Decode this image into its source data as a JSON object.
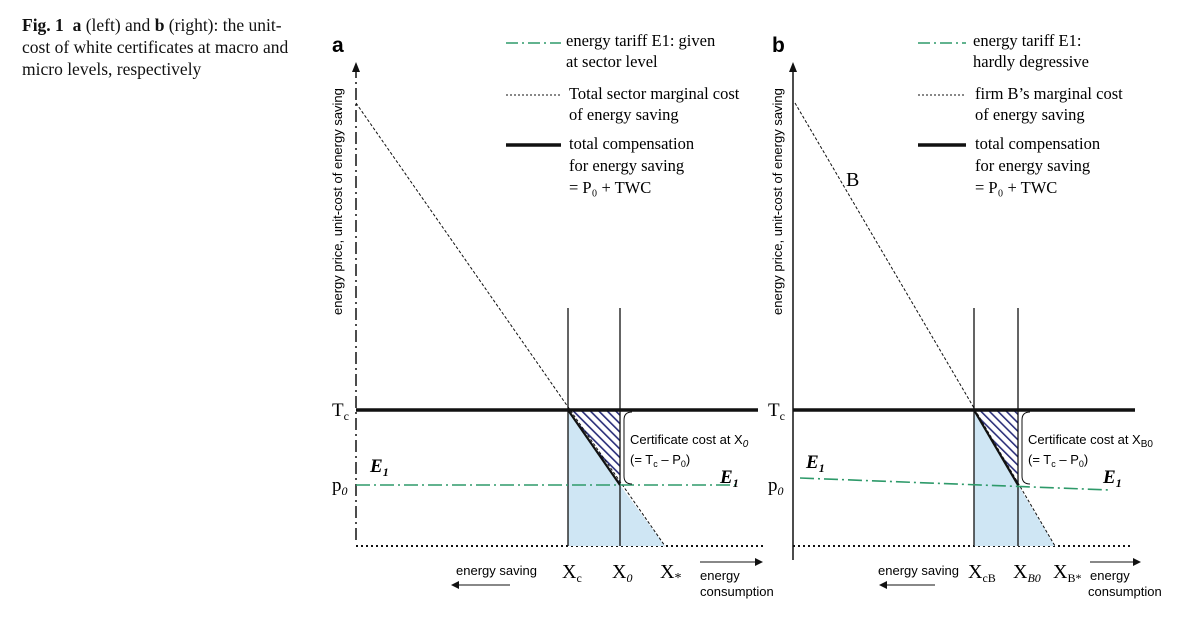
{
  "caption": {
    "fig_label": "Fig. 1",
    "a": "a",
    "a_text": "(left) and",
    "b": "b",
    "b_text": "(right): the unit-cost of white certif­icates at macro and micro levels, respectively"
  },
  "panel_a": {
    "letter": "a",
    "y_axis_label": "energy price, unit-cost of energy saving",
    "legend": [
      {
        "line": "dash-dot-green",
        "text1": "energy tariff  E1: given",
        "text2": "at sector level"
      },
      {
        "line": "dotted-black",
        "text1": "Total sector marginal cost",
        "text2": "of energy saving"
      },
      {
        "line": "thick-black",
        "text1": "total compensation",
        "text2": "for energy saving",
        "text3": "= P₀ + TWC"
      }
    ],
    "tc_label": "T",
    "tc_sub": "c",
    "p0_label": "p",
    "p0_sub": "0",
    "e1_left": "E",
    "e1_left_sub": "1",
    "e1_right": "E",
    "e1_right_sub": "1",
    "cert_line1": "Certificate cost at X",
    "cert_line1_sub": "0",
    "cert_line2": "(= T",
    "cert_line2_sub": "c",
    "cert_line2_tail": " – P",
    "cert_line2_sub2": "0",
    "cert_line2_end": ")",
    "x_labels": [
      {
        "main": "X",
        "sub": "c"
      },
      {
        "main": "X",
        "sub": "0"
      },
      {
        "main": "X",
        "sub": "*"
      }
    ],
    "energy_saving": "energy saving",
    "energy_consumption_1": "energy",
    "energy_consumption_2": "consumption"
  },
  "panel_b": {
    "letter": "b",
    "y_axis_label": "energy price, unit-cost of energy saving",
    "legend": [
      {
        "line": "dash-dot-green",
        "text1": "energy tariff  E1:",
        "text2": "hardly degressive"
      },
      {
        "line": "dotted-black",
        "text1": "firm B’s marginal cost",
        "text2": "of energy saving"
      },
      {
        "line": "thick-black",
        "text1": "total compensation",
        "text2": "for energy saving",
        "text3": "= P₀ + TWC"
      }
    ],
    "curve_label": "B",
    "tc_label": "T",
    "tc_sub": "c",
    "p0_label": "p",
    "p0_sub": "0",
    "e1_left": "E",
    "e1_left_sub": "1",
    "e1_right": "E",
    "e1_right_sub": "1",
    "cert_line1": "Certificate cost at X",
    "cert_line1_sub": "B0",
    "cert_line2": "(= T",
    "cert_line2_sub": "c",
    "cert_line2_tail": " – P",
    "cert_line2_sub2": "0",
    "cert_line2_end": ")",
    "x_labels": [
      {
        "main": "X",
        "sub": "cB"
      },
      {
        "main": "X",
        "sub": "B0"
      },
      {
        "main": "X",
        "sub": "B*"
      }
    ],
    "energy_saving": "energy saving",
    "energy_consumption_1": "energy",
    "energy_consumption_2": "consumption"
  },
  "colors": {
    "tariff_green": "#2e9a6a",
    "shade_blue": "#cfe6f4",
    "hatch_navy": "#2b2f7a",
    "text": "#111111"
  }
}
